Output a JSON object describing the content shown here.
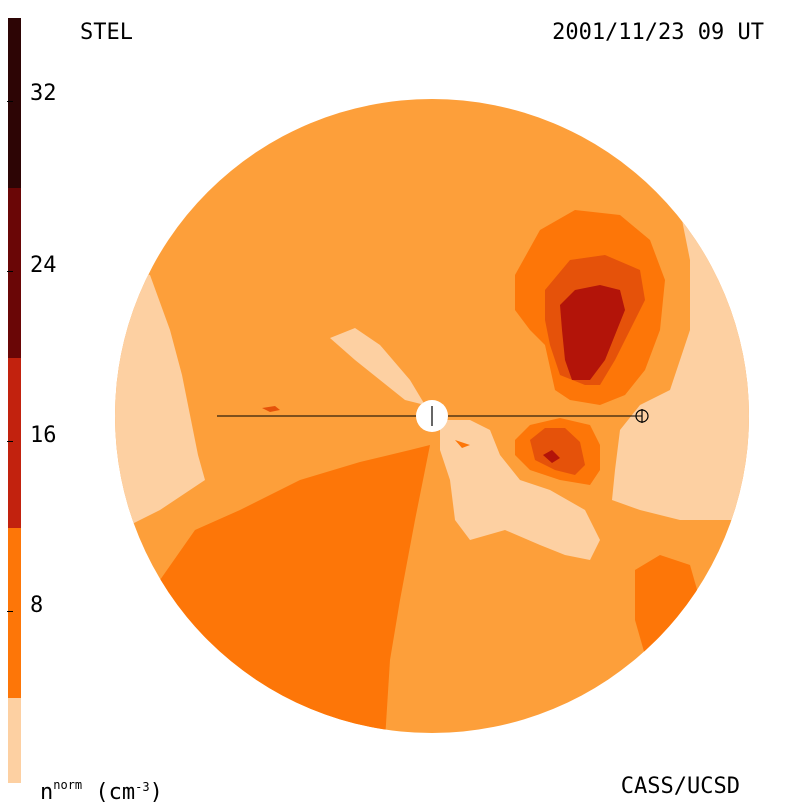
{
  "header": {
    "title": "STEL",
    "timestamp": "2001/11/23 09 UT"
  },
  "footer": {
    "credit": "CASS/UCSD",
    "units_symbol": "n",
    "units_superscript": "norm",
    "units_open": " (cm",
    "units_exponent": "-3",
    "units_close": ")"
  },
  "colorbar": {
    "tick_labels": [
      "32",
      "24",
      "16",
      "8"
    ],
    "colors": [
      "#fdd0a2",
      "#fd9f3a",
      "#fd7608",
      "#e5520a",
      "#c2220e",
      "#9d0c0a",
      "#6a0606",
      "#2d0505"
    ]
  },
  "map": {
    "background_level_color": "#fd9f3a",
    "low_color": "#fdd0a2",
    "mid_color": "#fd7608",
    "high_color": "#e5520a",
    "peak_color": "#b31409",
    "max_color": "#9d0c0a"
  }
}
